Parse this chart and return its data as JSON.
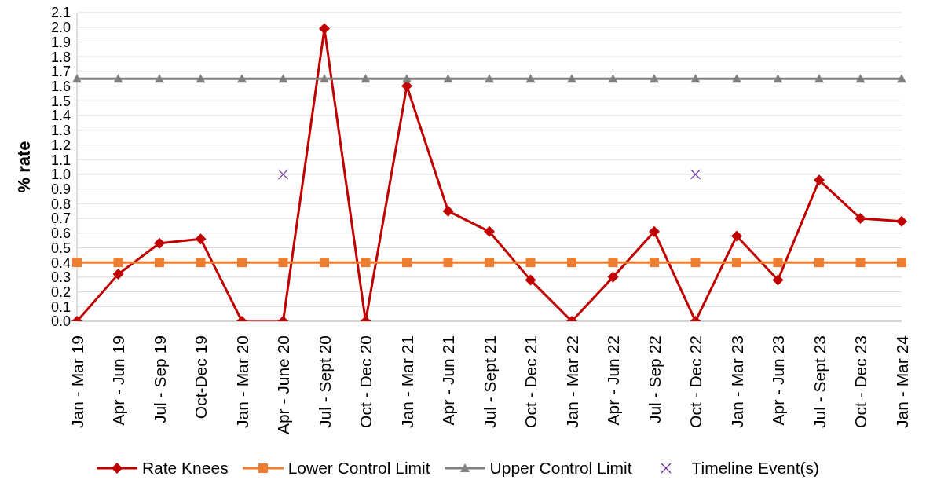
{
  "chart_data": {
    "type": "line",
    "ylabel": "% rate",
    "categories": [
      "Jan - Mar 19",
      "Apr - Jun 19",
      "Jul - Sep 19",
      "Oct-Dec 19",
      "Jan - Mar 20",
      "Apr - June 20",
      "Jul - Sept 20",
      "Oct - Dec 20",
      "Jan - Mar 21",
      "Apr - Jun 21",
      "Jul - Sept 21",
      "Oct - Dec 21",
      "Jan - Mar 22",
      "Apr - Jun 22",
      "Jul - Sep 22",
      "Oct - Dec 22",
      "Jan - Mar 23",
      "Apr - Jun 23",
      "Jul - Sept 23",
      "Oct - Dec 23",
      "Jan - Mar 24"
    ],
    "series": [
      {
        "name": "Rate Knees",
        "color": "#c00000",
        "marker": "diamond",
        "values": [
          0,
          0.32,
          0.53,
          0.56,
          0,
          0,
          1.99,
          0,
          1.6,
          0.75,
          0.61,
          0.28,
          0,
          0.3,
          0.61,
          0,
          0.58,
          0.28,
          0.96,
          0.7,
          0.68
        ]
      },
      {
        "name": "Lower Control Limit",
        "color": "#ed7d31",
        "marker": "square",
        "values": [
          0.4,
          0.4,
          0.4,
          0.4,
          0.4,
          0.4,
          0.4,
          0.4,
          0.4,
          0.4,
          0.4,
          0.4,
          0.4,
          0.4,
          0.4,
          0.4,
          0.4,
          0.4,
          0.4,
          0.4,
          0.4
        ]
      },
      {
        "name": "Upper Control Limit",
        "color": "#7f7f7f",
        "marker": "triangle",
        "values": [
          1.65,
          1.65,
          1.65,
          1.65,
          1.65,
          1.65,
          1.65,
          1.65,
          1.65,
          1.65,
          1.65,
          1.65,
          1.65,
          1.65,
          1.65,
          1.65,
          1.65,
          1.65,
          1.65,
          1.65,
          1.65
        ]
      },
      {
        "name": "Timeline Event(s)",
        "color": "#7030a0",
        "type": "scatter",
        "marker": "cross",
        "values": [
          null,
          null,
          null,
          null,
          null,
          1.0,
          null,
          null,
          null,
          null,
          null,
          null,
          null,
          null,
          null,
          1.0,
          null,
          null,
          null,
          null,
          null
        ]
      }
    ],
    "ylim": [
      0,
      2.1
    ],
    "yticks": [
      {
        "value": 0,
        "label": "0.0"
      },
      0.1,
      0.2,
      0.3,
      0.4,
      0.5,
      0.6,
      0.7,
      0.8,
      0.9,
      {
        "value": 1,
        "label": "1.0"
      },
      1.1,
      1.2,
      1.3,
      1.4,
      1.5,
      1.6,
      1.7,
      1.8,
      1.9,
      {
        "value": 2,
        "label": "2.0"
      },
      2.1
    ],
    "grid": "y",
    "legend": "bottom",
    "line_style": "solid"
  }
}
